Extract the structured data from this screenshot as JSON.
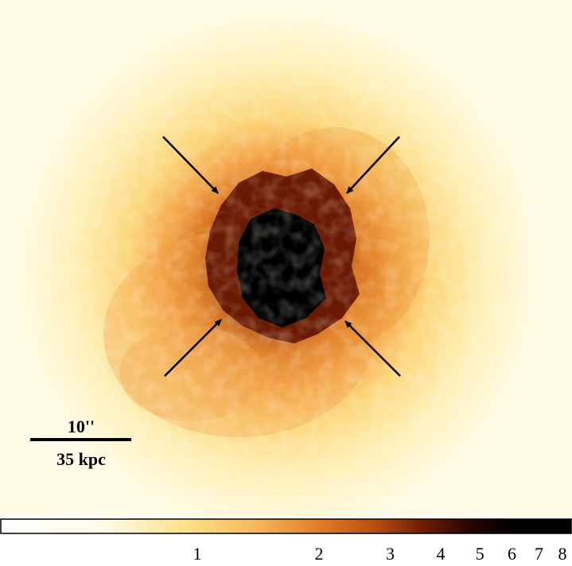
{
  "image": {
    "subject": "x-ray-cluster-map",
    "colormap": [
      "#ffffff",
      "#fff4c2",
      "#fde38a",
      "#f9b25a",
      "#e98a2d",
      "#c75a13",
      "#8e2a05",
      "#4d0d00",
      "#000000"
    ],
    "arrow_color": "#000000"
  },
  "scale_bar": {
    "angular_label": "10''",
    "physical_label": "35 kpc"
  },
  "colorbar": {
    "ticks": [
      {
        "label": "1",
        "value": 1
      },
      {
        "label": "2",
        "value": 2
      },
      {
        "label": "3",
        "value": 3
      },
      {
        "label": "4",
        "value": 4
      },
      {
        "label": "5",
        "value": 5
      },
      {
        "label": "6",
        "value": 6
      },
      {
        "label": "7",
        "value": 7
      },
      {
        "label": "8",
        "value": 8
      }
    ]
  }
}
